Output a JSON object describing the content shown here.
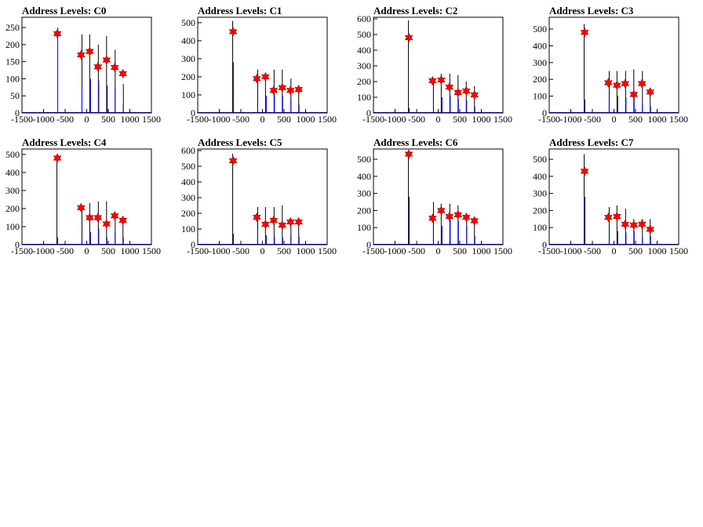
{
  "chart_data": [
    {
      "type": "histogram",
      "title": "Address Levels: C0",
      "xlim": [
        -1500,
        1500
      ],
      "ylim": [
        0,
        280
      ],
      "xticks": [
        -1500,
        -1000,
        -500,
        0,
        500,
        1000,
        1500
      ],
      "yticks": [
        0,
        50,
        100,
        150,
        200,
        250
      ],
      "blue_spikes": [
        [
          -680,
          250
        ],
        [
          -120,
          75
        ],
        [
          80,
          100
        ],
        [
          270,
          95
        ],
        [
          470,
          80
        ],
        [
          650,
          75
        ],
        [
          840,
          25
        ]
      ],
      "black_spikes": [
        [
          -110,
          230
        ],
        [
          70,
          230
        ],
        [
          270,
          200
        ],
        [
          460,
          225
        ],
        [
          660,
          185
        ],
        [
          850,
          85
        ]
      ],
      "peaks": {
        "x": [
          -680,
          -130,
          70,
          260,
          460,
          650,
          840
        ],
        "y": [
          232,
          170,
          180,
          135,
          155,
          133,
          115
        ]
      }
    },
    {
      "type": "histogram",
      "title": "Address Levels: C1",
      "xlim": [
        -1500,
        1500
      ],
      "ylim": [
        0,
        530
      ],
      "xticks": [
        -1500,
        -1000,
        -500,
        0,
        500,
        1000,
        1500
      ],
      "yticks": [
        0,
        100,
        200,
        300,
        400,
        500
      ],
      "blue_spikes": [
        [
          -680,
          280
        ],
        [
          -120,
          80
        ],
        [
          80,
          95
        ],
        [
          270,
          100
        ],
        [
          460,
          95
        ],
        [
          650,
          75
        ],
        [
          840,
          45
        ]
      ],
      "black_spikes": [
        [
          -690,
          510
        ],
        [
          -110,
          240
        ],
        [
          70,
          220
        ],
        [
          270,
          240
        ],
        [
          460,
          240
        ],
        [
          660,
          190
        ],
        [
          840,
          150
        ]
      ],
      "peaks": {
        "x": [
          -680,
          -130,
          70,
          260,
          460,
          650,
          840
        ],
        "y": [
          450,
          190,
          200,
          125,
          140,
          125,
          130
        ]
      }
    },
    {
      "type": "histogram",
      "title": "Address Levels: C2",
      "xlim": [
        -1500,
        1500
      ],
      "ylim": [
        0,
        610
      ],
      "xticks": [
        -1500,
        -1000,
        -500,
        0,
        500,
        1000,
        1500
      ],
      "yticks": [
        0,
        100,
        200,
        300,
        400,
        500,
        600
      ],
      "blue_spikes": [
        [
          -680,
          30
        ],
        [
          -120,
          200
        ],
        [
          80,
          100
        ],
        [
          270,
          110
        ],
        [
          460,
          90
        ],
        [
          650,
          80
        ],
        [
          840,
          40
        ]
      ],
      "black_spikes": [
        [
          -690,
          590
        ],
        [
          -110,
          220
        ],
        [
          70,
          250
        ],
        [
          270,
          250
        ],
        [
          460,
          240
        ],
        [
          650,
          200
        ],
        [
          840,
          170
        ]
      ],
      "peaks": {
        "x": [
          -680,
          -130,
          70,
          260,
          460,
          650,
          840
        ],
        "y": [
          480,
          205,
          210,
          165,
          130,
          140,
          115
        ]
      }
    },
    {
      "type": "histogram",
      "title": "Address Levels: C3",
      "xlim": [
        -1500,
        1500
      ],
      "ylim": [
        0,
        570
      ],
      "xticks": [
        -1500,
        -1000,
        -500,
        0,
        500,
        1000,
        1500
      ],
      "yticks": [
        0,
        100,
        200,
        300,
        400,
        500
      ],
      "blue_spikes": [
        [
          -680,
          80
        ],
        [
          -120,
          80
        ],
        [
          80,
          100
        ],
        [
          270,
          90
        ],
        [
          460,
          85
        ],
        [
          650,
          55
        ],
        [
          840,
          40
        ]
      ],
      "black_spikes": [
        [
          -690,
          530
        ],
        [
          -110,
          250
        ],
        [
          70,
          250
        ],
        [
          270,
          250
        ],
        [
          460,
          260
        ],
        [
          660,
          250
        ],
        [
          840,
          150
        ]
      ],
      "peaks": {
        "x": [
          -680,
          -130,
          70,
          260,
          460,
          650,
          840
        ],
        "y": [
          480,
          180,
          165,
          175,
          110,
          175,
          125
        ]
      }
    },
    {
      "type": "histogram",
      "title": "Address Levels: C4",
      "xlim": [
        -1500,
        1500
      ],
      "ylim": [
        0,
        530
      ],
      "xticks": [
        -1500,
        -1000,
        -500,
        0,
        500,
        1000,
        1500
      ],
      "yticks": [
        0,
        100,
        200,
        300,
        400,
        500
      ],
      "blue_spikes": [
        [
          -680,
          40
        ],
        [
          -120,
          40
        ],
        [
          80,
          70
        ],
        [
          270,
          90
        ],
        [
          460,
          40
        ],
        [
          650,
          70
        ],
        [
          840,
          40
        ]
      ],
      "black_spikes": [
        [
          -690,
          500
        ],
        [
          -110,
          200
        ],
        [
          70,
          230
        ],
        [
          270,
          240
        ],
        [
          460,
          240
        ],
        [
          660,
          170
        ],
        [
          840,
          140
        ]
      ],
      "peaks": {
        "x": [
          -680,
          -130,
          70,
          260,
          460,
          650,
          840
        ],
        "y": [
          480,
          205,
          150,
          150,
          115,
          160,
          135
        ]
      }
    },
    {
      "type": "histogram",
      "title": "Address Levels: C5",
      "xlim": [
        -1500,
        1500
      ],
      "ylim": [
        0,
        610
      ],
      "xticks": [
        -1500,
        -1000,
        -500,
        0,
        500,
        1000,
        1500
      ],
      "yticks": [
        0,
        100,
        200,
        300,
        400,
        500,
        600
      ],
      "blue_spikes": [
        [
          -680,
          70
        ],
        [
          -120,
          90
        ],
        [
          80,
          60
        ],
        [
          270,
          50
        ],
        [
          460,
          50
        ],
        [
          650,
          60
        ],
        [
          840,
          50
        ]
      ],
      "black_spikes": [
        [
          -690,
          580
        ],
        [
          -110,
          240
        ],
        [
          70,
          240
        ],
        [
          270,
          240
        ],
        [
          460,
          250
        ],
        [
          660,
          170
        ],
        [
          840,
          170
        ]
      ],
      "peaks": {
        "x": [
          -680,
          -130,
          70,
          260,
          460,
          650,
          840
        ],
        "y": [
          535,
          175,
          130,
          155,
          125,
          145,
          145
        ]
      }
    },
    {
      "type": "histogram",
      "title": "Address Levels: C6",
      "xlim": [
        -1500,
        1500
      ],
      "ylim": [
        0,
        560
      ],
      "xticks": [
        -1500,
        -1000,
        -500,
        0,
        500,
        1000,
        1500
      ],
      "yticks": [
        0,
        100,
        200,
        300,
        400,
        500
      ],
      "blue_spikes": [
        [
          -680,
          280
        ],
        [
          -120,
          180
        ],
        [
          80,
          110
        ],
        [
          270,
          160
        ],
        [
          460,
          140
        ],
        [
          650,
          110
        ],
        [
          840,
          50
        ]
      ],
      "black_spikes": [
        [
          -690,
          540
        ],
        [
          -110,
          250
        ],
        [
          70,
          240
        ],
        [
          270,
          240
        ],
        [
          460,
          230
        ],
        [
          660,
          170
        ],
        [
          840,
          130
        ]
      ],
      "peaks": {
        "x": [
          -680,
          -130,
          70,
          260,
          460,
          650,
          840
        ],
        "y": [
          530,
          155,
          200,
          165,
          175,
          160,
          140
        ]
      }
    },
    {
      "type": "histogram",
      "title": "Address Levels: C7",
      "xlim": [
        -1500,
        1500
      ],
      "ylim": [
        0,
        560
      ],
      "xticks": [
        -1500,
        -1000,
        -500,
        0,
        500,
        1000,
        1500
      ],
      "yticks": [
        0,
        100,
        200,
        300,
        400,
        500
      ],
      "blue_spikes": [
        [
          -680,
          280
        ],
        [
          -120,
          40
        ],
        [
          80,
          80
        ],
        [
          270,
          70
        ],
        [
          460,
          80
        ],
        [
          650,
          40
        ],
        [
          840,
          50
        ]
      ],
      "black_spikes": [
        [
          -690,
          530
        ],
        [
          -110,
          220
        ],
        [
          70,
          230
        ],
        [
          270,
          210
        ],
        [
          460,
          150
        ],
        [
          660,
          150
        ],
        [
          840,
          150
        ]
      ],
      "peaks": {
        "x": [
          -680,
          -130,
          70,
          260,
          460,
          650,
          840
        ],
        "y": [
          430,
          160,
          165,
          120,
          115,
          120,
          90
        ]
      }
    }
  ]
}
